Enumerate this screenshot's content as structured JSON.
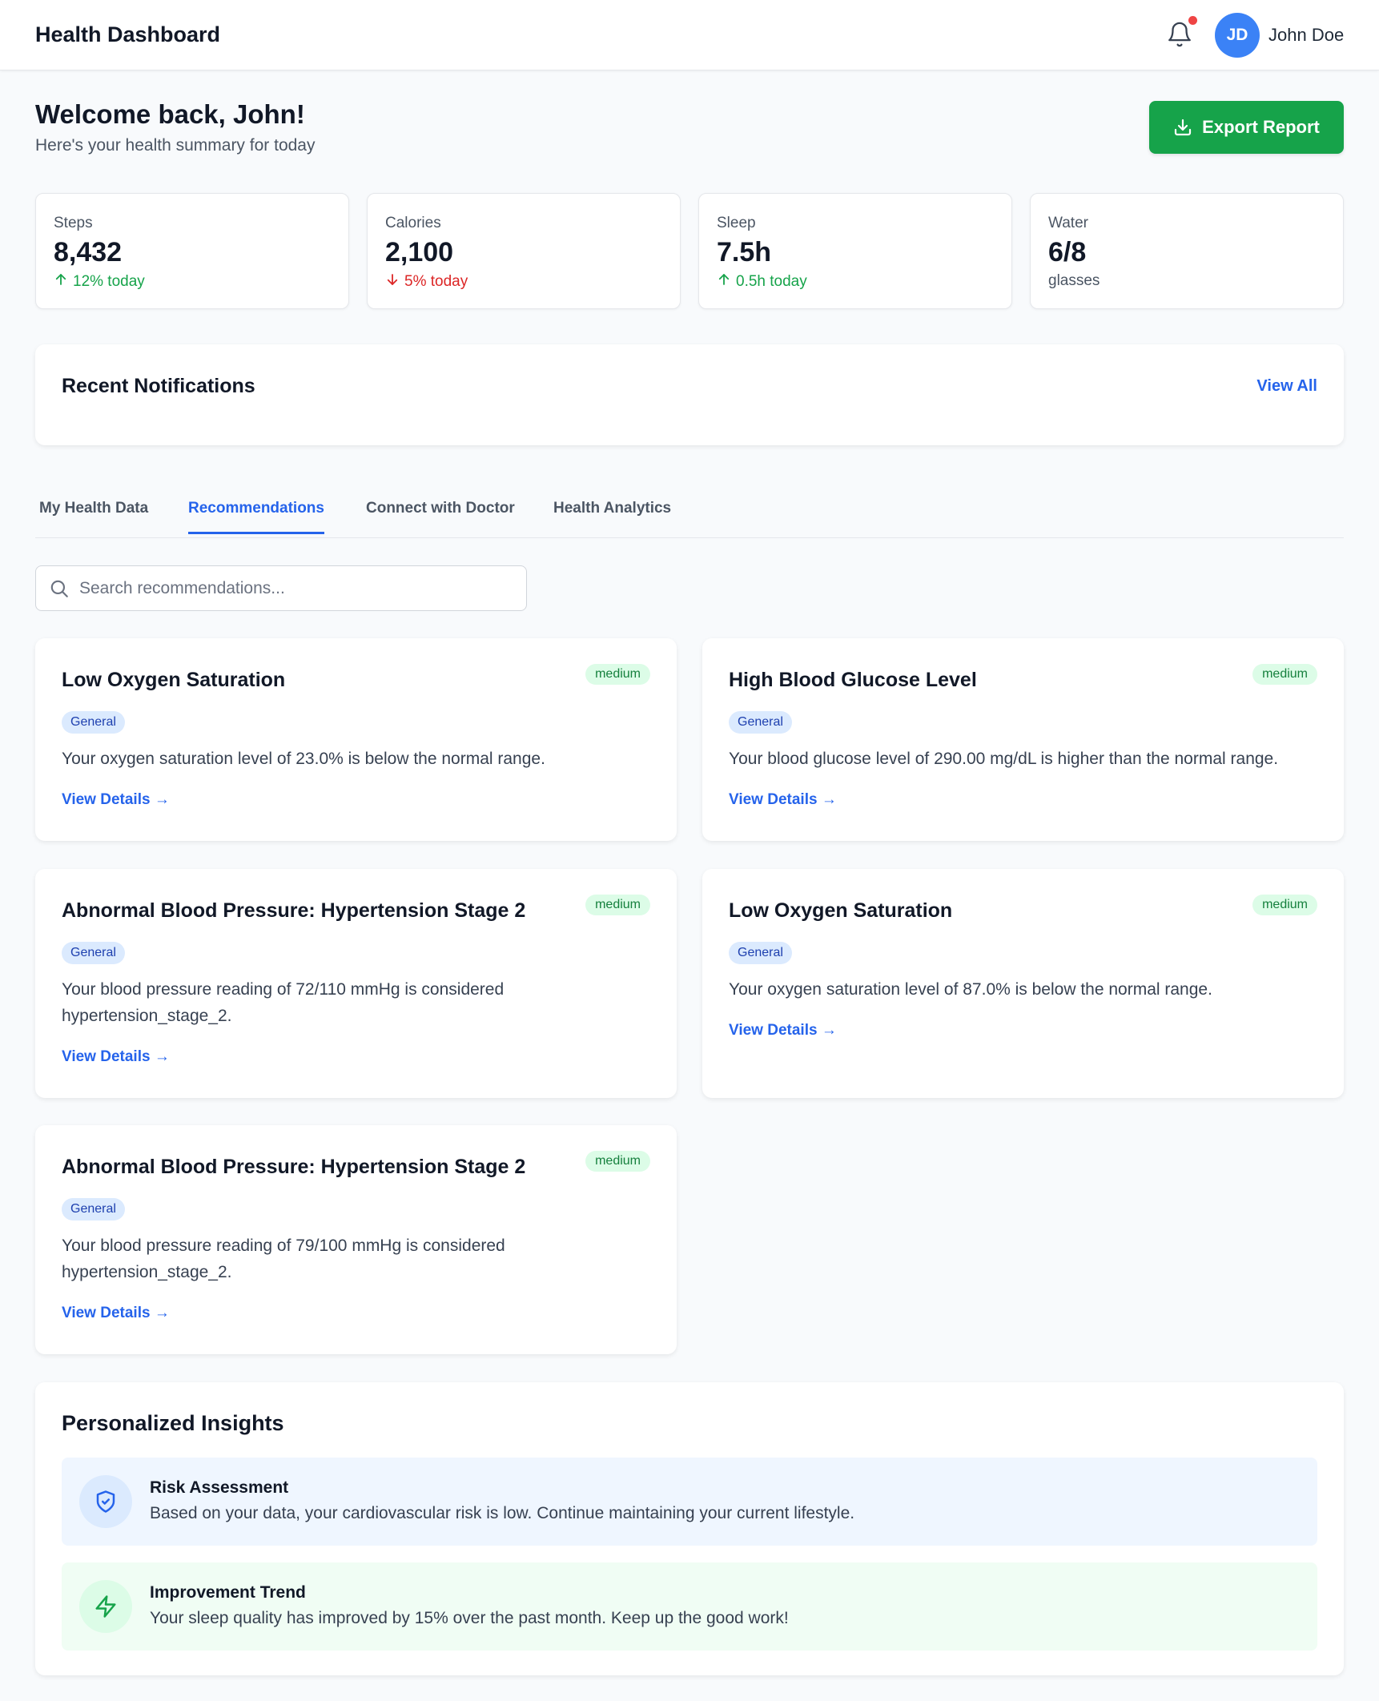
{
  "header": {
    "brand": "Health Dashboard",
    "user_initials": "JD",
    "user_name": "John Doe",
    "bell_icon": "bell-icon",
    "has_unread": true
  },
  "welcome": {
    "title": "Welcome back, John!",
    "subtitle": "Here's your health summary for today",
    "export_label": "Export Report",
    "export_icon": "download-icon"
  },
  "stats": [
    {
      "label": "Steps",
      "value": "8,432",
      "change": "12% today",
      "trend": "up"
    },
    {
      "label": "Calories",
      "value": "2,100",
      "change": "5% today",
      "trend": "down"
    },
    {
      "label": "Sleep",
      "value": "7.5h",
      "change": "0.5h today",
      "trend": "up"
    },
    {
      "label": "Water",
      "value": "6/8",
      "change": "glasses",
      "trend": "none"
    }
  ],
  "notifications": {
    "title": "Recent Notifications",
    "view_all": "View All"
  },
  "tabs": [
    {
      "label": "My Health Data",
      "active": false
    },
    {
      "label": "Recommendations",
      "active": true
    },
    {
      "label": "Connect with Doctor",
      "active": false
    },
    {
      "label": "Health Analytics",
      "active": false
    }
  ],
  "search": {
    "placeholder": "Search recommendations...",
    "icon": "search-icon"
  },
  "recommendations": [
    {
      "title": "Low Oxygen Saturation",
      "priority": "medium",
      "category": "General",
      "description": "Your oxygen saturation level of 23.0% is below the normal range.",
      "link": "View Details →"
    },
    {
      "title": "High Blood Glucose Level",
      "priority": "medium",
      "category": "General",
      "description": "Your blood glucose level of 290.00 mg/dL is higher than the normal range.",
      "link": "View Details →"
    },
    {
      "title": "Abnormal Blood Pressure: Hypertension Stage 2",
      "priority": "medium",
      "category": "General",
      "description": "Your blood pressure reading of 72/110 mmHg is considered hypertension_stage_2.",
      "link": "View Details →"
    },
    {
      "title": "Low Oxygen Saturation",
      "priority": "medium",
      "category": "General",
      "description": "Your oxygen saturation level of 87.0% is below the normal range.",
      "link": "View Details →"
    },
    {
      "title": "Abnormal Blood Pressure: Hypertension Stage 2",
      "priority": "medium",
      "category": "General",
      "description": "Your blood pressure reading of 79/100 mmHg is considered hypertension_stage_2.",
      "link": "View Details →"
    }
  ],
  "insights": {
    "title": "Personalized Insights",
    "items": [
      {
        "icon": "shield-icon",
        "title": "Risk Assessment",
        "text": "Based on your data, your cardiovascular risk is low. Continue maintaining your current lifestyle."
      },
      {
        "icon": "lightning-icon",
        "title": "Improvement Trend",
        "text": "Your sleep quality has improved by 15% over the past month. Keep up the good work!"
      }
    ]
  },
  "colors": {
    "primary": "#2563eb",
    "success": "#16a34a",
    "danger": "#dc2626",
    "export_button": "#16a34a",
    "avatar": "#3b82f6",
    "notification_dot": "#ef4444",
    "priority_bg": "#dcfce7",
    "priority_text": "#15803d",
    "category_bg": "#dbeafe",
    "category_text": "#1e40af",
    "insight_blue_bg": "#eff6ff",
    "insight_green_bg": "#f0fdf4"
  }
}
